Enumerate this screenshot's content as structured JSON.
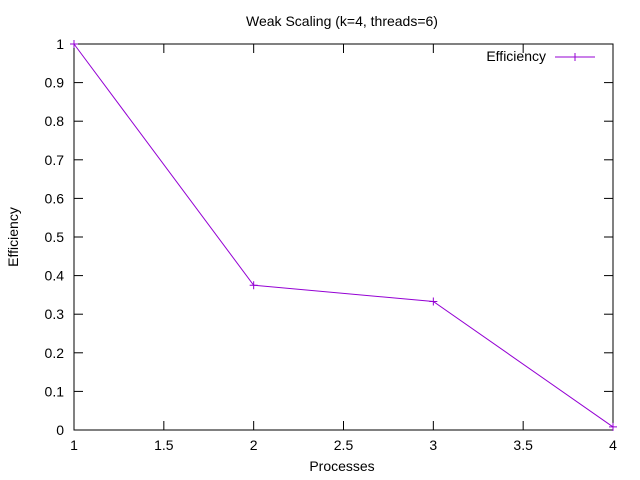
{
  "chart_data": {
    "type": "line",
    "title": "Weak Scaling (k=4, threads=6)",
    "xlabel": "Processes",
    "ylabel": "Efficiency",
    "xlim": [
      1,
      4
    ],
    "ylim": [
      0,
      1
    ],
    "x_ticks": [
      "1",
      "1.5",
      "2",
      "2.5",
      "3",
      "3.5",
      "4"
    ],
    "y_ticks": [
      "0",
      "0.1",
      "0.2",
      "0.3",
      "0.4",
      "0.5",
      "0.6",
      "0.7",
      "0.8",
      "0.9",
      "1"
    ],
    "grid": false,
    "legend_position": "top-right",
    "series": [
      {
        "name": "Efficiency",
        "color": "#9400d3",
        "marker": "plus",
        "x": [
          1,
          2,
          3,
          4
        ],
        "y": [
          1.0,
          0.375,
          0.333,
          0.008
        ]
      }
    ]
  }
}
